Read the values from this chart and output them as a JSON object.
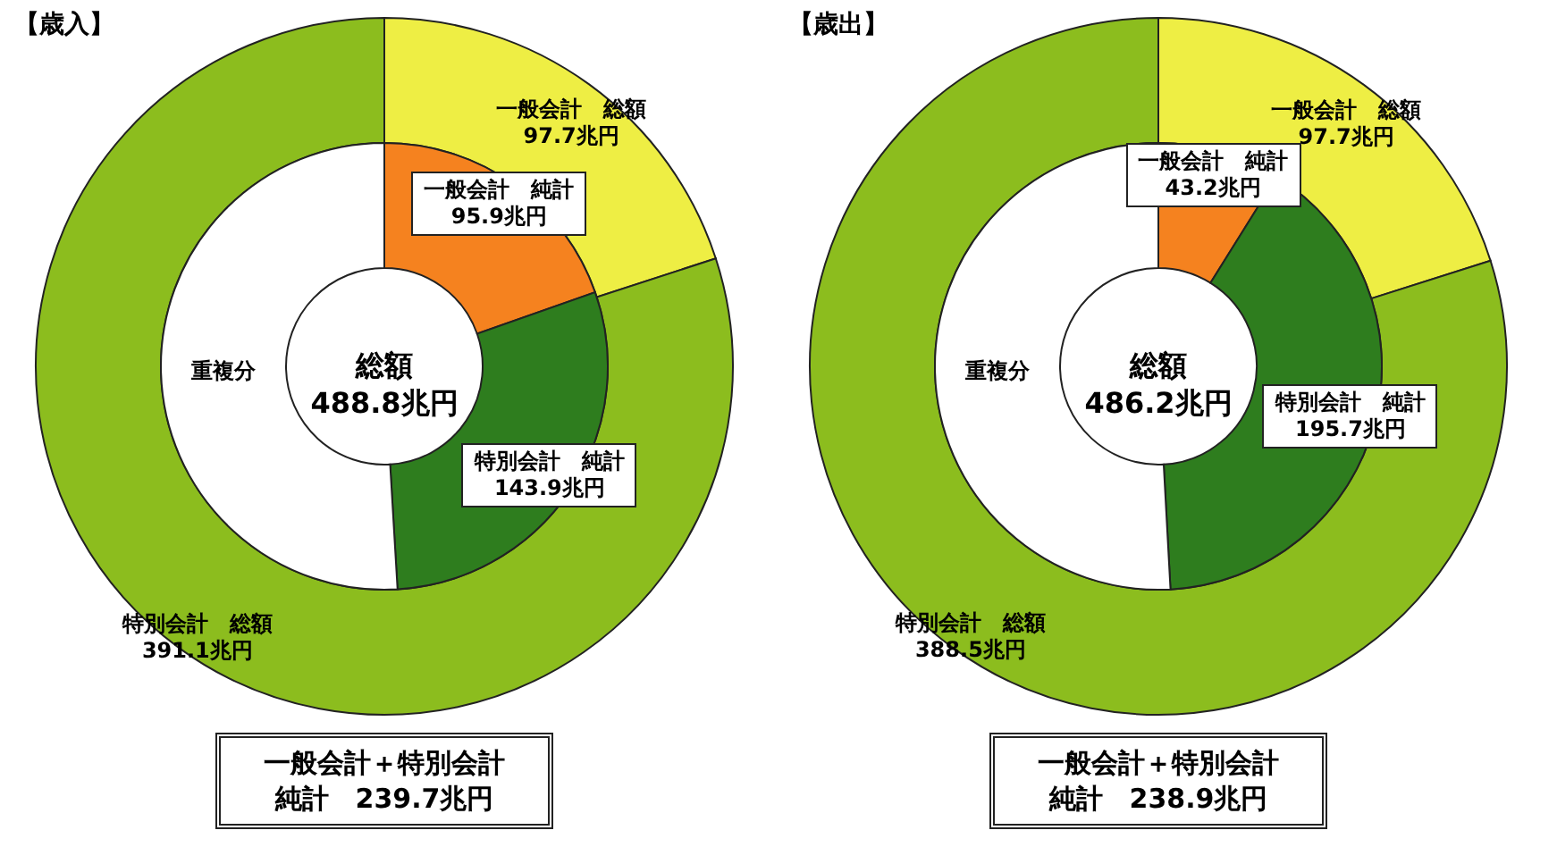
{
  "chart_data": [
    {
      "type": "donut",
      "title": "【歳入】",
      "categories": [
        "一般会計　総額",
        "特別会計　総額"
      ],
      "values": [
        97.7,
        391.1
      ],
      "colors": [
        "#eeee44",
        "#8cbd1e"
      ],
      "value_labels": [
        "97.7兆円",
        "391.1兆円"
      ]
    },
    {
      "type": "donut",
      "categories": [
        "一般会計　純計",
        "特別会計　純計",
        "重複分"
      ],
      "values": [
        95.9,
        143.9,
        249.0
      ],
      "colors": [
        "#f5821f",
        "#2e7d1e",
        "#ffffff"
      ],
      "value_labels": [
        "95.9兆円",
        "143.9兆円",
        null
      ],
      "annotations": [
        "総額",
        "488.8兆円",
        "一般会計＋特別会計",
        "純計　239.7兆円"
      ]
    },
    {
      "type": "donut",
      "title": "【歳出】",
      "categories": [
        "一般会計　総額",
        "特別会計　総額"
      ],
      "values": [
        97.7,
        388.5
      ],
      "colors": [
        "#eeee44",
        "#8cbd1e"
      ],
      "value_labels": [
        "97.7兆円",
        "388.5兆円"
      ]
    },
    {
      "type": "donut",
      "categories": [
        "一般会計　純計",
        "特別会計　純計",
        "重複分"
      ],
      "values": [
        43.2,
        195.7,
        247.3
      ],
      "colors": [
        "#f5821f",
        "#2e7d1e",
        "#ffffff"
      ],
      "value_labels": [
        "43.2兆円",
        "195.7兆円",
        null
      ],
      "annotations": [
        "総額",
        "486.2兆円",
        "一般会計＋特別会計",
        "純計　238.9兆円"
      ]
    }
  ]
}
